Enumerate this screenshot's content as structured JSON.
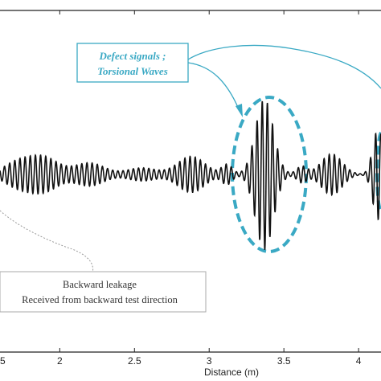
{
  "chart_data": {
    "type": "line",
    "xlabel": "Distance (m)",
    "xlim": [
      1.6,
      4.15
    ],
    "ylim": [
      -1.0,
      1.0
    ],
    "x_ticks": [
      2,
      2.5,
      3,
      3.5,
      4
    ],
    "x_tick_labels": [
      "2",
      "2.5",
      "3",
      "3.5",
      "4"
    ],
    "grid": false,
    "series": [
      {
        "envelope_segments": [
          {
            "center": 1.7,
            "width": 0.12,
            "amp": 0.12
          },
          {
            "center": 1.88,
            "width": 0.15,
            "amp": 0.22
          },
          {
            "center": 2.2,
            "width": 0.14,
            "amp": 0.14
          },
          {
            "center": 2.55,
            "width": 0.14,
            "amp": 0.08
          },
          {
            "center": 2.88,
            "width": 0.13,
            "amp": 0.22
          },
          {
            "center": 3.12,
            "width": 0.05,
            "amp": 0.12
          },
          {
            "center": 3.37,
            "width": 0.085,
            "amp": 0.92
          },
          {
            "center": 3.62,
            "width": 0.05,
            "amp": 0.1
          },
          {
            "center": 3.82,
            "width": 0.1,
            "amp": 0.25
          },
          {
            "center": 4.13,
            "width": 0.05,
            "amp": 0.55
          }
        ],
        "period": 0.0345,
        "color": "#111111"
      }
    ],
    "annotations": [
      {
        "id": "defect",
        "lines": [
          "Defect signals ;",
          "Torsional Waves"
        ],
        "color": "#3aa9c4"
      },
      {
        "id": "leakage",
        "lines": [
          "Backward leakage",
          "Received from backward test direction"
        ],
        "color": "#333333"
      }
    ]
  },
  "colors": {
    "signal": "#111111",
    "defect_accent": "#3aa9c4",
    "axis": "#222222",
    "leader": "#888888"
  }
}
